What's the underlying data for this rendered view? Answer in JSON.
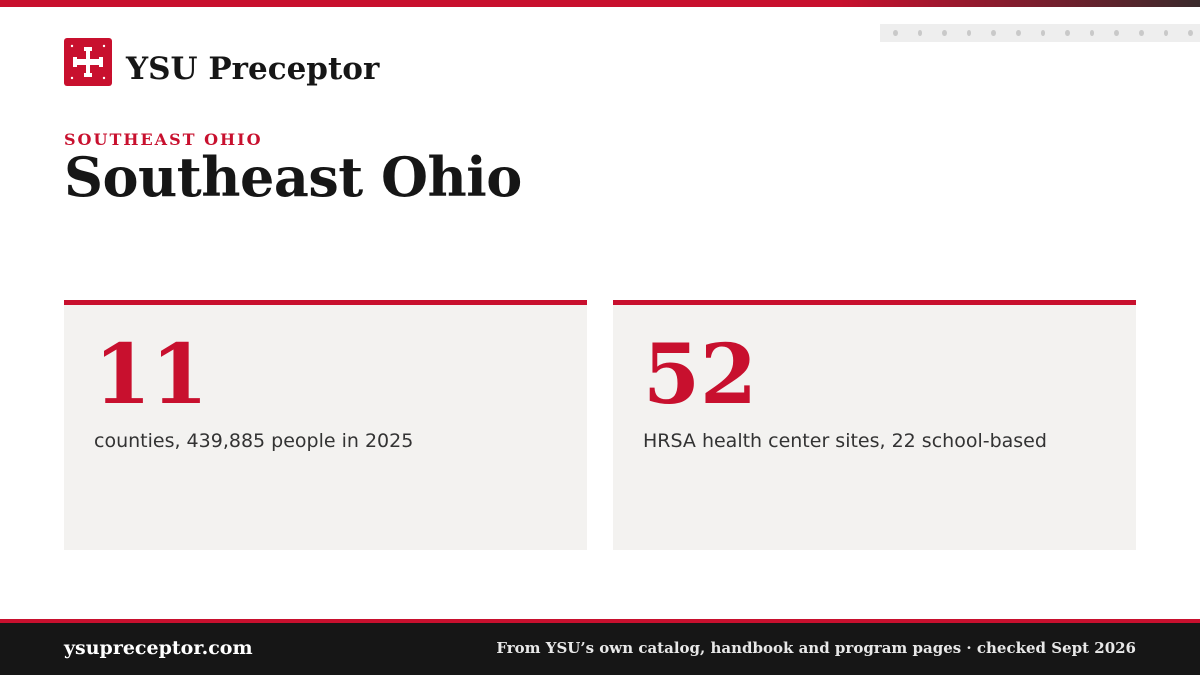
{
  "header": {
    "brand": "YSU Preceptor"
  },
  "eyebrow": "SOUTHEAST OHIO",
  "title": "Southeast Ohio",
  "cards": [
    {
      "value": "11",
      "caption": "counties, 439,885 people in 2025"
    },
    {
      "value": "52",
      "caption": "HRSA health center sites, 22 school-based"
    }
  ],
  "footer": {
    "site": "ysupreceptor.com",
    "note": "From YSU’s own catalog, handbook and program pages · checked Sept 2026"
  }
}
